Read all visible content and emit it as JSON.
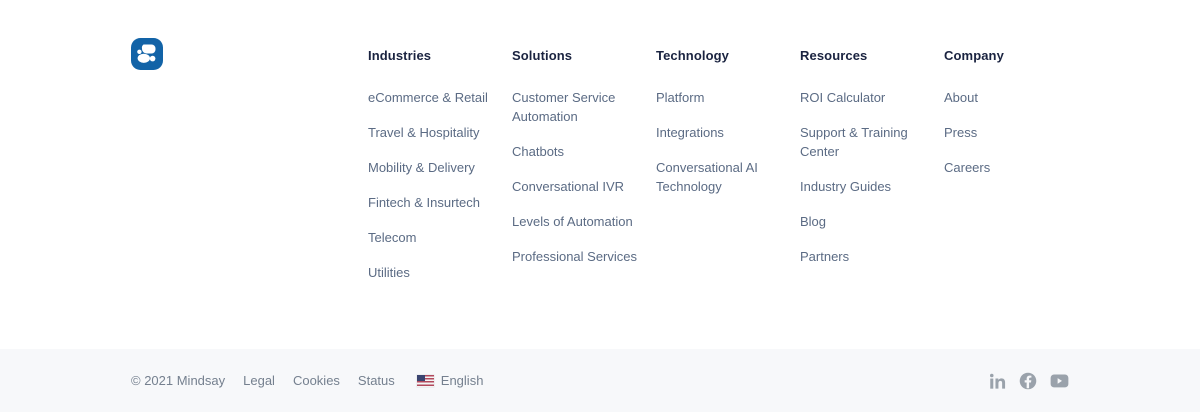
{
  "logo": {
    "label": "Mindsay",
    "color": "#1263a7"
  },
  "nav_columns": [
    {
      "title": "Industries",
      "links": [
        "eCommerce & Retail",
        "Travel & Hospitality",
        "Mobility & Delivery",
        "Fintech & Insurtech",
        "Telecom",
        "Utilities"
      ]
    },
    {
      "title": "Solutions",
      "links": [
        "Customer Service Automation",
        "Chatbots",
        "Conversational IVR",
        "Levels of Automation",
        "Professional Services"
      ]
    },
    {
      "title": "Technology",
      "links": [
        "Platform",
        "Integrations",
        "Conversational AI Technology"
      ]
    },
    {
      "title": "Resources",
      "links": [
        "ROI Calculator",
        "Support & Training Center",
        "Industry Guides",
        "Blog",
        "Partners"
      ]
    },
    {
      "title": "Company",
      "links": [
        "About",
        "Press",
        "Careers"
      ]
    }
  ],
  "bottom_bar": {
    "copyright": "© 2021 Mindsay",
    "links": [
      "Legal",
      "Cookies",
      "Status"
    ],
    "language": {
      "label": "English",
      "flag": "us-flag-icon"
    },
    "social_icons": [
      "linkedin-icon",
      "facebook-icon",
      "youtube-icon"
    ]
  },
  "colors": {
    "heading": "#1a2340",
    "link": "#5b6b84",
    "bottom_text": "#75808f",
    "social_icon": "#9aa2ab",
    "bottom_bar_bg": "#f7f8fa",
    "logo_blue": "#1263a7"
  }
}
